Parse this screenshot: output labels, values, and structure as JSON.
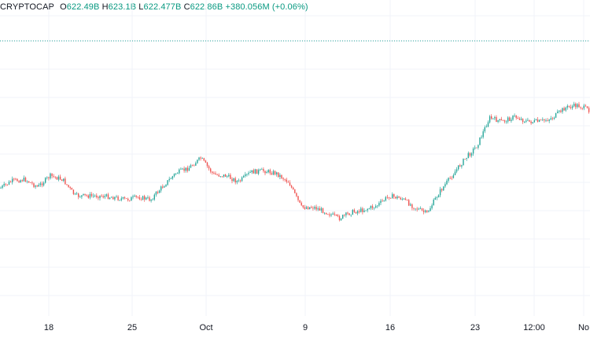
{
  "legend": {
    "symbol": "CRYPTOCAP",
    "open_label": "O",
    "open_value": "622.49B",
    "high_label": "H",
    "high_value": "623.1B",
    "low_label": "L",
    "low_value": "622.477B",
    "close_label": "C",
    "close_value": "622.86B",
    "change": "+380.056M (+0.06%)"
  },
  "colors": {
    "up": "#26a69a",
    "down": "#ef5350",
    "grid": "#f0f3fa",
    "dotted_line": "#26a69a",
    "text": "#131722"
  },
  "chart_data": {
    "type": "candlestick",
    "title": "",
    "xlabel": "",
    "ylabel": "",
    "x_tick_labels": [
      "18",
      "25",
      "Oct",
      "9",
      "16",
      "23",
      "12:00",
      "No"
    ],
    "grid": true,
    "reference_line": "dotted horizontal line near top of plot",
    "close_trend": [
      {
        "x": "15",
        "y": 0.24
      },
      {
        "x": "16",
        "y": 0.3
      },
      {
        "x": "17",
        "y": 0.31
      },
      {
        "x": "18",
        "y": 0.25
      },
      {
        "x": "19",
        "y": 0.34
      },
      {
        "x": "20",
        "y": 0.31
      },
      {
        "x": "21",
        "y": 0.18
      },
      {
        "x": "22",
        "y": 0.18
      },
      {
        "x": "23",
        "y": 0.18
      },
      {
        "x": "24",
        "y": 0.17
      },
      {
        "x": "25",
        "y": 0.15
      },
      {
        "x": "26",
        "y": 0.17
      },
      {
        "x": "27",
        "y": 0.15
      },
      {
        "x": "28",
        "y": 0.26
      },
      {
        "x": "29",
        "y": 0.36
      },
      {
        "x": "30",
        "y": 0.4
      },
      {
        "x": "Oct",
        "y": 0.48
      },
      {
        "x": "2",
        "y": 0.35
      },
      {
        "x": "3",
        "y": 0.34
      },
      {
        "x": "4",
        "y": 0.29
      },
      {
        "x": "5",
        "y": 0.37
      },
      {
        "x": "6",
        "y": 0.38
      },
      {
        "x": "7",
        "y": 0.36
      },
      {
        "x": "8",
        "y": 0.29
      },
      {
        "x": "9",
        "y": 0.09
      },
      {
        "x": "10",
        "y": 0.09
      },
      {
        "x": "11",
        "y": 0.05
      },
      {
        "x": "12",
        "y": 0.0
      },
      {
        "x": "13",
        "y": 0.05
      },
      {
        "x": "14",
        "y": 0.07
      },
      {
        "x": "15",
        "y": 0.1
      },
      {
        "x": "16",
        "y": 0.18
      },
      {
        "x": "17",
        "y": 0.16
      },
      {
        "x": "18",
        "y": 0.09
      },
      {
        "x": "19",
        "y": 0.04
      },
      {
        "x": "20",
        "y": 0.21
      },
      {
        "x": "21",
        "y": 0.34
      },
      {
        "x": "22",
        "y": 0.47
      },
      {
        "x": "23",
        "y": 0.58
      },
      {
        "x": "24",
        "y": 0.8
      },
      {
        "x": "25",
        "y": 0.77
      },
      {
        "x": "26",
        "y": 0.81
      },
      {
        "x": "27",
        "y": 0.77
      },
      {
        "x": "28",
        "y": 0.77
      },
      {
        "x": "29",
        "y": 0.8
      },
      {
        "x": "30",
        "y": 0.88
      },
      {
        "x": "31",
        "y": 0.9
      },
      {
        "x": "No",
        "y": 0.86
      }
    ]
  }
}
